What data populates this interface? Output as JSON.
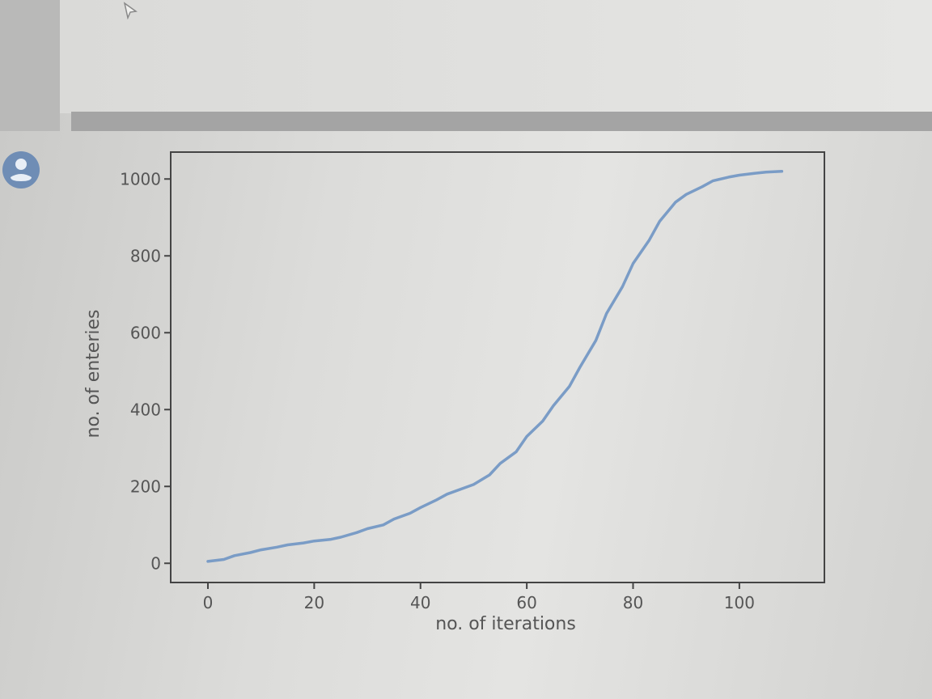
{
  "chart_data": {
    "type": "line",
    "xlabel": "no. of iterations",
    "ylabel": "no. of enteries",
    "xlim": [
      -7,
      116
    ],
    "ylim": [
      -50,
      1070
    ],
    "xticks": [
      0,
      20,
      40,
      60,
      80,
      100
    ],
    "yticks": [
      0,
      200,
      400,
      600,
      800,
      1000
    ],
    "grid": false,
    "line_color": "#7a9cc6",
    "series": [
      {
        "x": [
          0,
          3,
          5,
          8,
          10,
          13,
          15,
          18,
          20,
          23,
          25,
          28,
          30,
          33,
          35,
          38,
          40,
          43,
          45,
          48,
          50,
          53,
          55,
          58,
          60,
          63,
          65,
          68,
          70,
          73,
          75,
          78,
          80,
          83,
          85,
          88,
          90,
          93,
          95,
          98,
          100,
          103,
          105,
          108
        ],
        "y": [
          5,
          10,
          20,
          28,
          35,
          42,
          48,
          53,
          58,
          62,
          68,
          80,
          90,
          100,
          115,
          130,
          145,
          165,
          180,
          195,
          205,
          230,
          260,
          290,
          330,
          370,
          410,
          460,
          510,
          580,
          650,
          720,
          780,
          840,
          890,
          940,
          960,
          980,
          995,
          1005,
          1010,
          1015,
          1018,
          1020
        ]
      }
    ]
  }
}
